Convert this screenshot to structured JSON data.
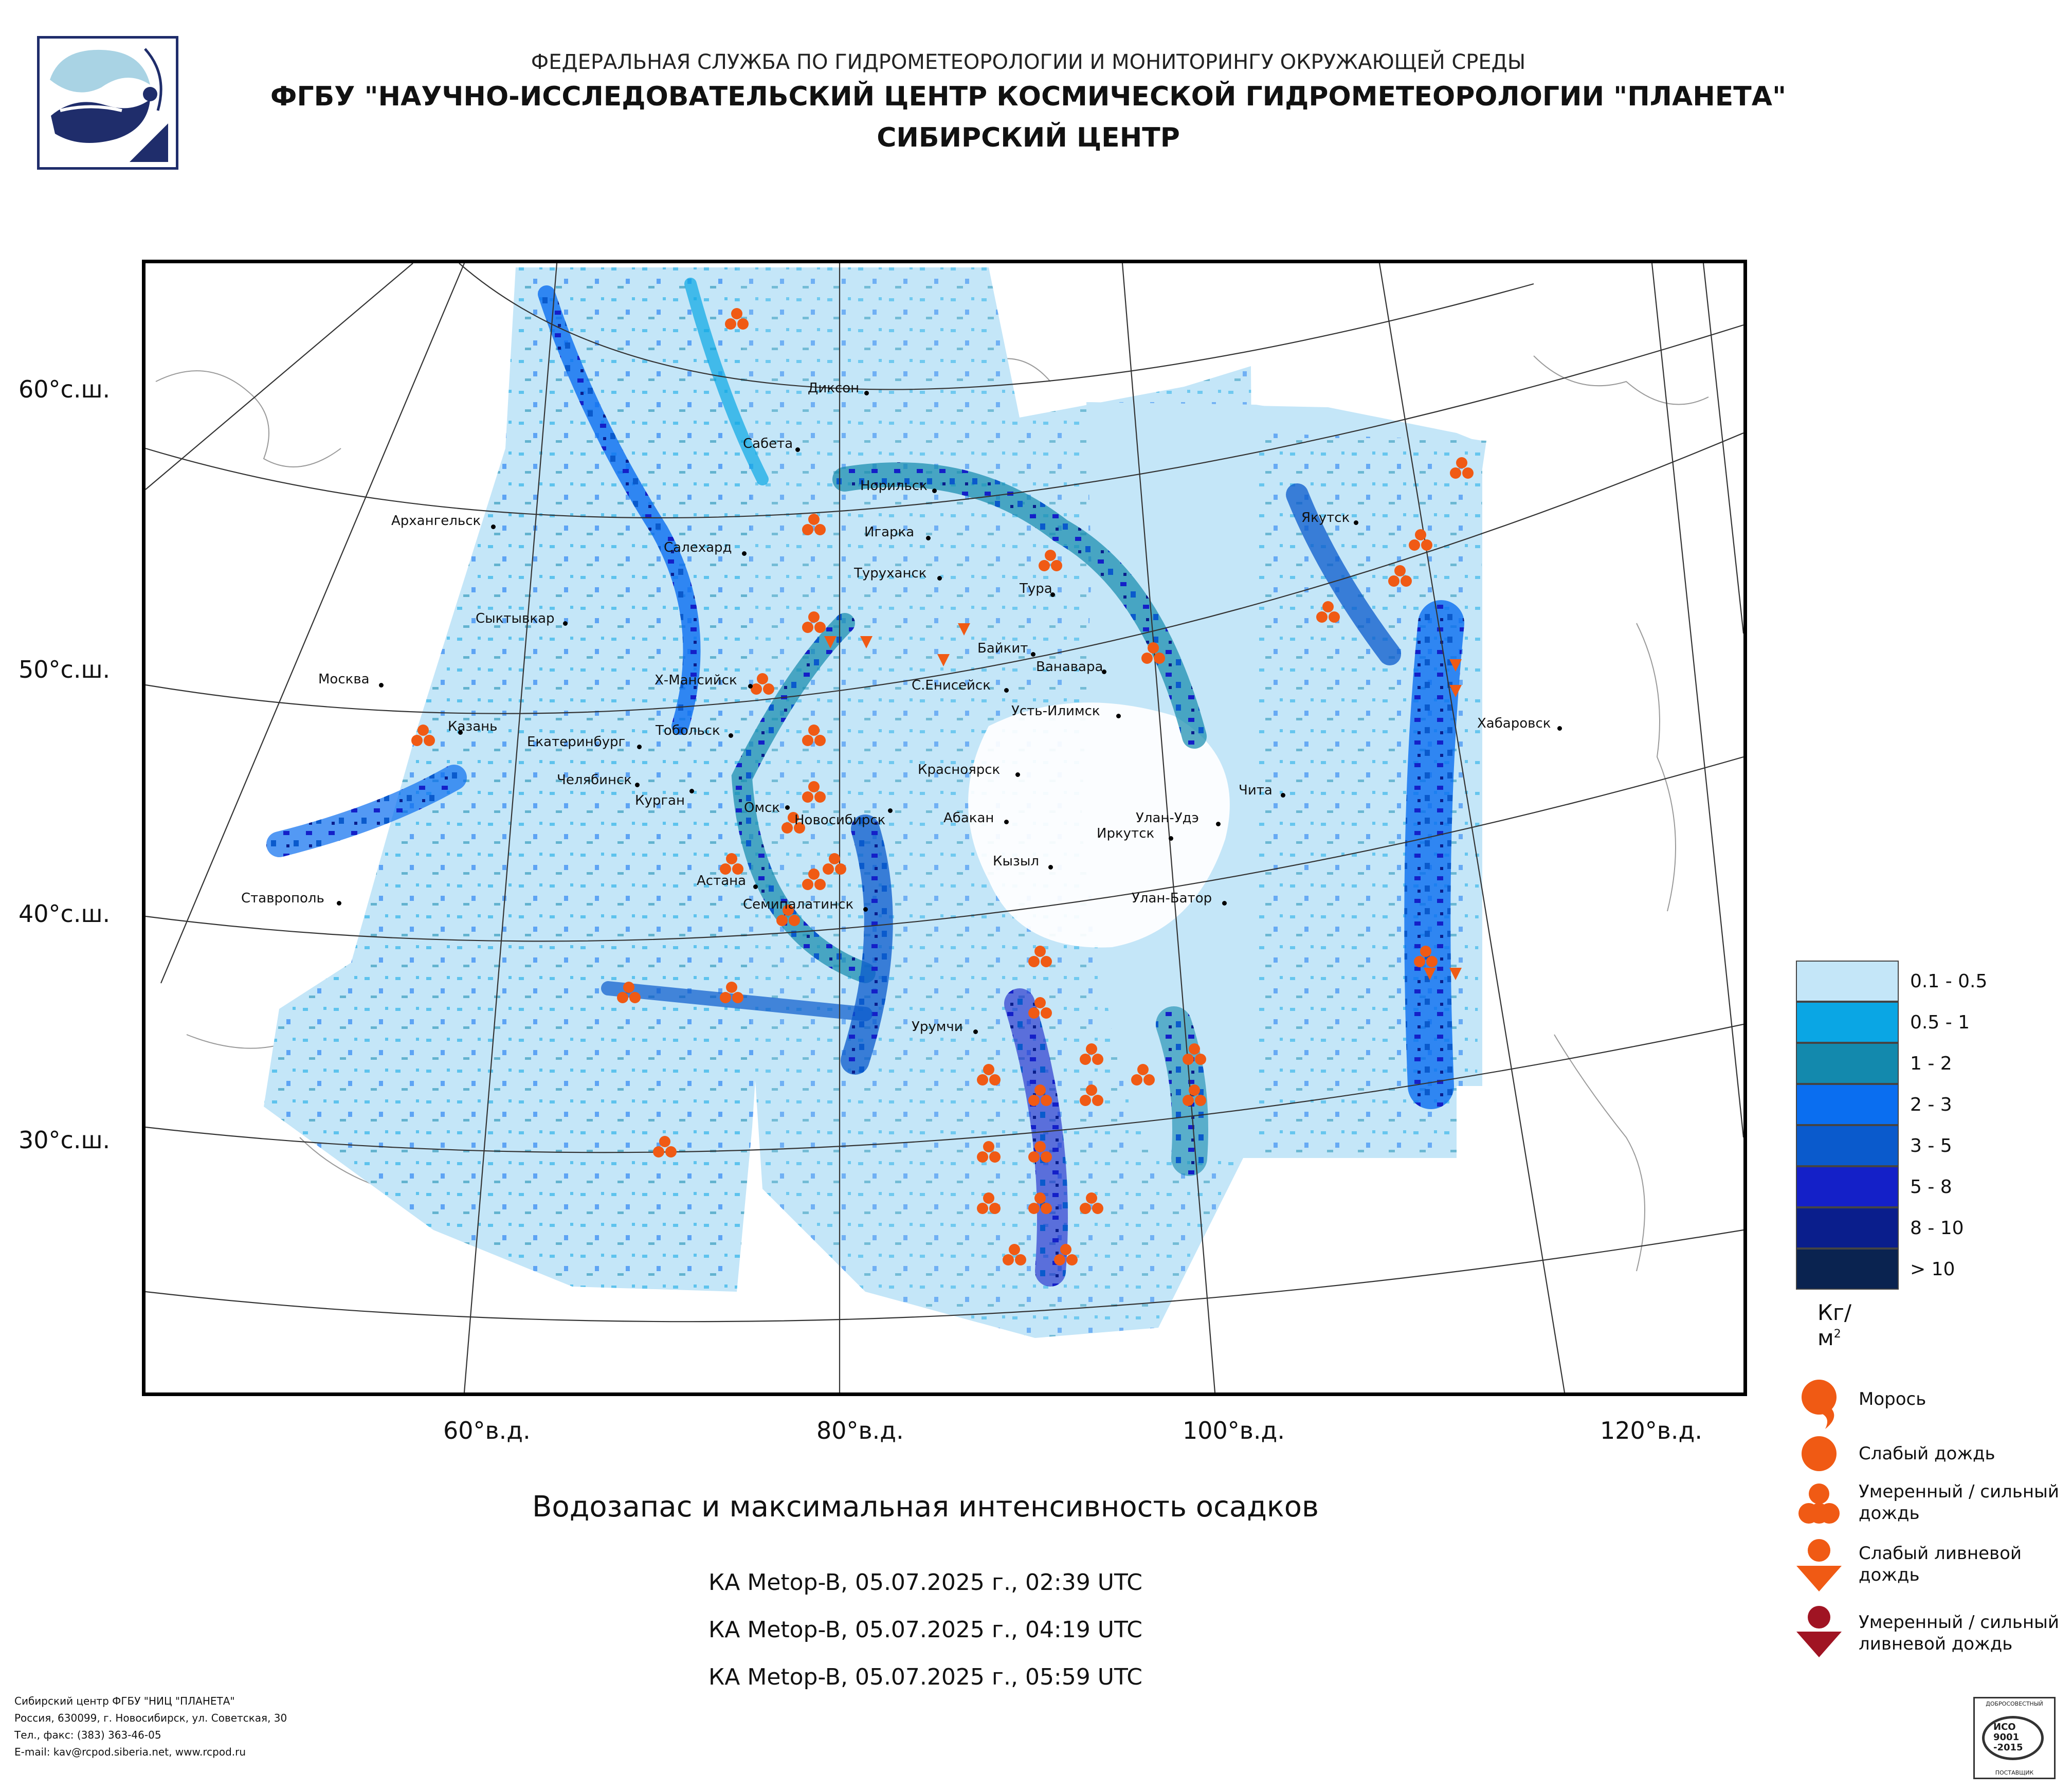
{
  "header": {
    "line1": "ФЕДЕРАЛЬНАЯ СЛУЖБА ПО ГИДРОМЕТЕОРОЛОГИИ И МОНИТОРИНГУ ОКРУЖАЮЩЕЙ СРЕДЫ",
    "line2": "ФГБУ \"НАУЧНО-ИССЛЕДОВАТЕЛЬСКИЙ ЦЕНТР КОСМИЧЕСКОЙ ГИДРОМЕТЕОРОЛОГИИ \"ПЛАНЕТА\"",
    "line3": "СИБИРСКИЙ ЦЕНТР",
    "logo_icon": "planeta-logo-icon"
  },
  "map": {
    "lat_labels": [
      "60°с.ш.",
      "50°с.ш.",
      "40°с.ш.",
      "30°с.ш."
    ],
    "lon_labels": [
      "60°в.д.",
      "80°в.д.",
      "100°в.д.",
      "120°в.д."
    ],
    "cities": [
      "Диксон",
      "Сабета",
      "Норильск",
      "Архангельск",
      "Игарка",
      "Салехард",
      "Туруханск",
      "Якутск",
      "Тура",
      "Сыктывкар",
      "Байкит",
      "Ванавара",
      "Москва",
      "Х-Мансийск",
      "С.Енисейск",
      "Усть-Илимск",
      "Казань",
      "Тобольск",
      "Хабаровск",
      "Екатеринбург",
      "Красноярск",
      "Челябинск",
      "Курган",
      "Чита",
      "Омск",
      "Абакан",
      "Новосибирск",
      "Улан-Удэ",
      "Иркутск",
      "Кызыл",
      "Астана",
      "Ставрополь",
      "Семипалатинск",
      "Улан-Батор",
      "Урумчи"
    ]
  },
  "legend": {
    "classes": [
      {
        "label": "0.1 - 0.5",
        "color": "#c4e6f8"
      },
      {
        "label": "0.5 - 1",
        "color": "#0aa6e4"
      },
      {
        "label": "1 - 2",
        "color": "#1389ad"
      },
      {
        "label": "2 - 3",
        "color": "#0a6ef0"
      },
      {
        "label": "3 - 5",
        "color": "#0a5acc"
      },
      {
        "label": "5 - 8",
        "color": "#1420c8"
      },
      {
        "label": "8 - 10",
        "color": "#0a1e8c"
      },
      {
        "label": "> 10",
        "color": "#0a2350"
      }
    ],
    "unit": "Кг/м",
    "unit_sup": "2",
    "symbols": {
      "drizzle": "Морось",
      "light_rain": "Слабый дождь",
      "moderate_rain_1": "Умеренный / сильный",
      "moderate_rain_2": "дождь",
      "light_shower_1": "Слабый ливневой",
      "light_shower_2": "дождь",
      "heavy_shower_1": "Умеренный / сильный",
      "heavy_shower_2": "ливневой дождь"
    },
    "precip_color": "#f05a14",
    "heavy_color": "#a01423"
  },
  "title": "Водозапас и максимальная интенсивность осадков",
  "passes": [
    "КА Metop-B, 05.07.2025 г., 02:39 UTC",
    "КА Metop-B, 05.07.2025 г., 04:19 UTC",
    "КА Metop-B, 05.07.2025 г., 05:59 UTC"
  ],
  "footer": {
    "line1": "Сибирский центр ФГБУ \"НИЦ \"ПЛАНЕТА\"",
    "line2": "Россия, 630099, г. Новосибирск, ул. Советская, 30",
    "line3": "Тел., факс: (383) 363-46-05",
    "line4": "E-mail: kav@rcpod.siberia.net, www.rcpod.ru"
  },
  "cert": {
    "top": "ДОБРОСОВЕСТНЫЙ",
    "l1": "ИСО",
    "l2": "9001",
    "l3": "-2015",
    "bottom": "ПОСТАВЩИК"
  }
}
